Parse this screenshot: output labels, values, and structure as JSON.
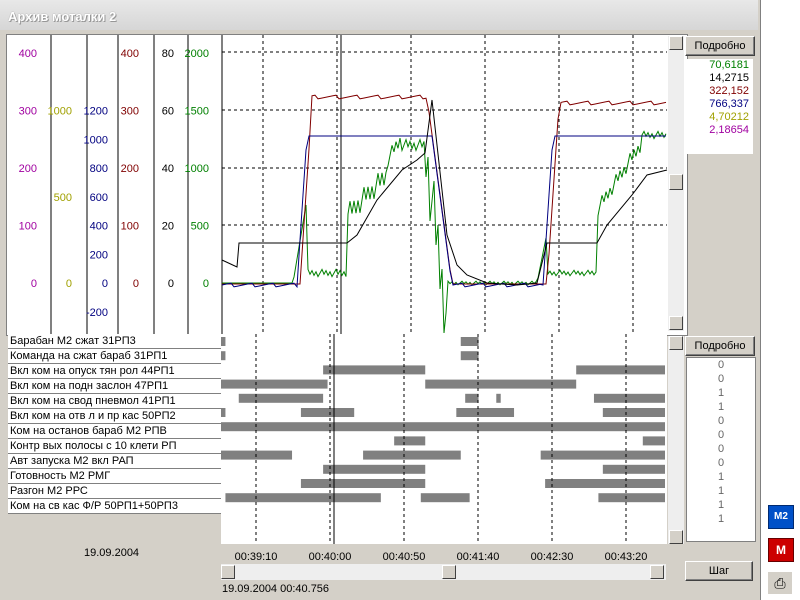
{
  "window": {
    "title": "Архив моталки 2"
  },
  "axes": {
    "purple": [
      "400",
      "300",
      "200",
      "100",
      "0"
    ],
    "olive": [
      "1500",
      "1000",
      "500",
      "0"
    ],
    "navy": [
      "1200",
      "1000",
      "800",
      "600",
      "400",
      "200",
      "0",
      "-200"
    ],
    "maroon": [
      "400",
      "300",
      "200",
      "100",
      "0"
    ],
    "black": [
      "80",
      "60",
      "40",
      "20",
      "0"
    ],
    "green": [
      "2000",
      "1500",
      "1000",
      "500",
      "0"
    ]
  },
  "colors": {
    "purple": "#a000a0",
    "olive": "#a0a000",
    "navy": "#000080",
    "maroon": "#800000",
    "black": "#000000",
    "green": "#008000",
    "bar": "#808080"
  },
  "buttons": {
    "detail_top": "Подробно",
    "detail_bottom": "Подробно",
    "step": "Шаг"
  },
  "values": [
    {
      "text": "70,6181",
      "color": "#008000"
    },
    {
      "text": "14,2715",
      "color": "#000000"
    },
    {
      "text": "322,152",
      "color": "#800000"
    },
    {
      "text": "766,337",
      "color": "#000080"
    },
    {
      "text": "4,70212",
      "color": "#a0a000"
    },
    {
      "text": "2,18654",
      "color": "#a000a0"
    }
  ],
  "signals": [
    {
      "label": "Барабан М2 сжат 31РП3",
      "value": "0",
      "on": [
        [
          0,
          1
        ],
        [
          54,
          58
        ]
      ]
    },
    {
      "label": "Команда на сжат бараб 31РП1",
      "value": "0",
      "on": [
        [
          0,
          1
        ],
        [
          54,
          58
        ]
      ]
    },
    {
      "label": "Вкл ком на опуск тян рол 44РП1",
      "value": "1",
      "on": [
        [
          23,
          46
        ],
        [
          80,
          100
        ]
      ]
    },
    {
      "label": "Вкл ком на подн заслон 47РП1",
      "value": "1",
      "on": [
        [
          0,
          24
        ],
        [
          46,
          80
        ]
      ]
    },
    {
      "label": "Вкл ком на свод пневмол 41РП1",
      "value": "0",
      "on": [
        [
          4,
          23
        ],
        [
          55,
          58
        ],
        [
          62,
          63
        ],
        [
          84,
          100
        ]
      ]
    },
    {
      "label": "Вкл ком на отв л и пр кас 50РП2",
      "value": "0",
      "on": [
        [
          0,
          1
        ],
        [
          18,
          30
        ],
        [
          53,
          66
        ],
        [
          86,
          100
        ]
      ]
    },
    {
      "label": "Ком на останов бараб М2 РПВ",
      "value": "0",
      "on": [
        [
          0,
          100
        ]
      ]
    },
    {
      "label": "Контр вых полосы с 10 клети РП",
      "value": "0",
      "on": [
        [
          39,
          46
        ],
        [
          95,
          100
        ]
      ]
    },
    {
      "label": "Авт запуска М2 вкл РАП",
      "value": "1",
      "on": [
        [
          0,
          16
        ],
        [
          32,
          54
        ],
        [
          72,
          100
        ]
      ]
    },
    {
      "label": "Готовность М2 РМГ",
      "value": "1",
      "on": [
        [
          23,
          46
        ],
        [
          86,
          100
        ]
      ]
    },
    {
      "label": "Разгон М2 РРС",
      "value": "1",
      "on": [
        [
          18,
          46
        ],
        [
          73,
          100
        ]
      ]
    },
    {
      "label": "Ком на св кас Ф/Р 50РП1+50РП3",
      "value": "1",
      "on": [
        [
          1,
          36
        ],
        [
          45,
          56
        ],
        [
          85,
          100
        ]
      ]
    }
  ],
  "time_axis": [
    "00:39:10",
    "00:40:00",
    "00:40:50",
    "00:41:40",
    "00:42:30",
    "00:43:20"
  ],
  "date": "19.09.2004",
  "cursor_time": "19.09.2004 00:40.756",
  "icons": [
    "m2-icon",
    "m-icon",
    "printer-icon"
  ],
  "icon_labels": {
    "m2": "M2",
    "m": "M"
  }
}
